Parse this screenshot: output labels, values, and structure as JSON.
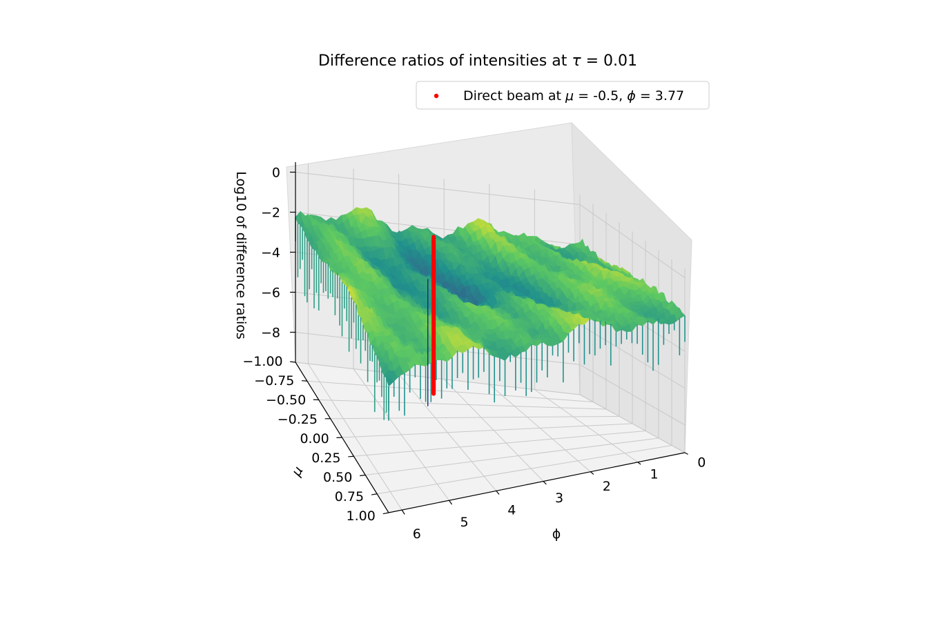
{
  "chart_data": {
    "type": "surface3d",
    "title": "Difference ratios of intensities at τ = 0.01",
    "title_parts": {
      "prefix": "Difference ratios of intensities at ",
      "tau_symbol": "τ",
      "suffix": " = 0.01"
    },
    "xlabel": "ϕ",
    "ylabel": "μ",
    "zlabel": "Log10 of difference ratios",
    "x_ticks": [
      0,
      1,
      2,
      3,
      4,
      5,
      6
    ],
    "x_tick_labels": [
      "0",
      "1",
      "2",
      "3",
      "4",
      "5",
      "6"
    ],
    "y_ticks": [
      -1.0,
      -0.75,
      -0.5,
      -0.25,
      0.0,
      0.25,
      0.5,
      0.75,
      1.0
    ],
    "y_tick_labels": [
      "−1.00",
      "−0.75",
      "−0.50",
      "−0.25",
      "0.00",
      "0.25",
      "0.50",
      "0.75",
      "1.00"
    ],
    "z_ticks": [
      0,
      -2,
      -4,
      -6,
      -8
    ],
    "z_tick_labels": [
      "0",
      "−2",
      "−4",
      "−6",
      "−8"
    ],
    "xlim": [
      0,
      6.28
    ],
    "ylim": [
      -1.0,
      1.0
    ],
    "zlim": [
      -9.5,
      0.5
    ],
    "surface": {
      "colormap": "viridis",
      "typical_z": [
        -3.5,
        -1.3
      ],
      "min_spike_z": -9.5
    },
    "direct_beam": {
      "mu": -0.5,
      "phi": 3.77,
      "z_range": [
        -9.0,
        -1.0
      ],
      "color": "#ff0000"
    },
    "legend": {
      "placement": "upper-right",
      "label": "Direct beam at μ = -0.5, ϕ = 3.77",
      "label_parts": {
        "prefix": "Direct beam at ",
        "mu_symbol": "μ",
        "mid": " = -0.5, ",
        "phi_symbol": "ϕ",
        "suffix": " = 3.77"
      },
      "marker_color": "#ff0000"
    },
    "grid": true
  }
}
